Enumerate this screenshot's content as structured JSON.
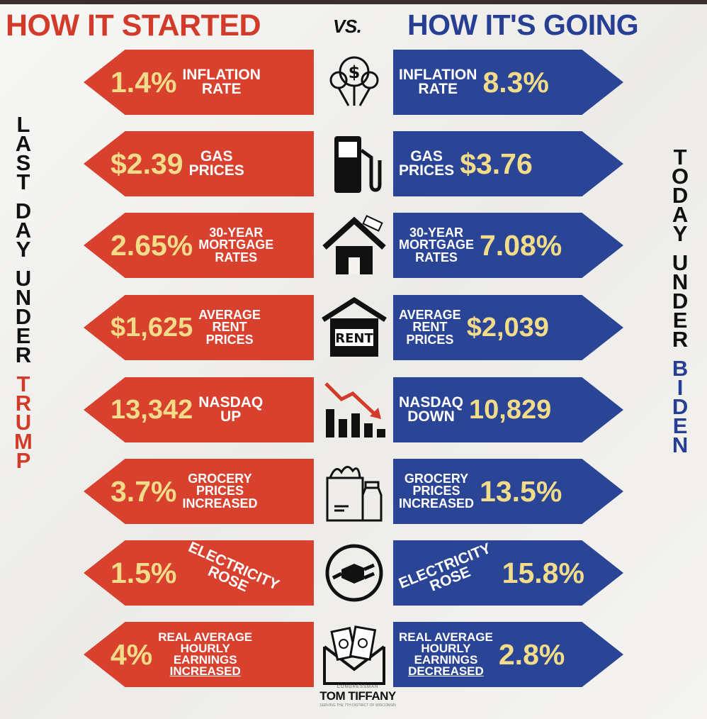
{
  "header": {
    "left": "HOW IT STARTED",
    "vs": "VS.",
    "right": "HOW IT'S GOING"
  },
  "side_left": {
    "words": [
      "LAST",
      "DAY",
      "UNDER"
    ],
    "name": "TRUMP",
    "color": "#111111",
    "name_color": "#d23b2a"
  },
  "side_right": {
    "words": [
      "TODAY",
      "UNDER"
    ],
    "name": "BIDEN",
    "color": "#111111",
    "name_color": "#263f95"
  },
  "rows": [
    {
      "left_value": "1.4%",
      "left_label": "INFLATION\nRATE",
      "right_value": "8.3%",
      "right_label": "INFLATION\nRATE",
      "icon": "money-balloon-icon"
    },
    {
      "left_value": "$2.39",
      "left_label": "GAS\nPRICES",
      "right_value": "$3.76",
      "right_label": "GAS\nPRICES",
      "icon": "gas-pump-icon"
    },
    {
      "left_value": "2.65%",
      "left_label": "30-YEAR\nMORTGAGE\nRATES",
      "right_value": "7.08%",
      "right_label": "30-YEAR\nMORTGAGE\nRATES",
      "icon": "house-icon"
    },
    {
      "left_value": "$1,625",
      "left_label": "AVERAGE\nRENT\nPRICES",
      "right_value": "$2,039",
      "right_label": "AVERAGE\nRENT\nPRICES",
      "icon": "rent-sign-icon"
    },
    {
      "left_value": "13,342",
      "left_label": "NASDAQ\nUP",
      "right_value": "10,829",
      "right_label": "NASDAQ\nDOWN",
      "icon": "falling-chart-icon"
    },
    {
      "left_value": "3.7%",
      "left_label": "GROCERY\nPRICES\nINCREASED",
      "right_value": "13.5%",
      "right_label": "GROCERY\nPRICES\nINCREASED",
      "icon": "grocery-bag-icon"
    },
    {
      "left_value": "1.5%",
      "left_label": "ELECTRICITY\nROSE",
      "right_value": "15.8%",
      "right_label": "ELECTRICITY\nROSE",
      "icon": "plug-icon"
    },
    {
      "left_value": "4%",
      "left_label": "REAL AVERAGE\nHOURLY\nEARNINGS",
      "left_label_u": "INCREASED",
      "right_value": "2.8%",
      "right_label": "REAL AVERAGE\nHOURLY\nEARNINGS",
      "right_label_u": "DECREASED",
      "icon": "money-envelope-icon"
    }
  ],
  "logo": {
    "sub": "CONGRESSMAN",
    "name": "TOM TIFFANY",
    "tag": "SERVING THE 7TH DISTRICT OF WISCONSIN"
  },
  "colors": {
    "red": "#d9412f",
    "blue": "#2b4596",
    "value": "#f2dc8a",
    "label": "#ffffff"
  }
}
